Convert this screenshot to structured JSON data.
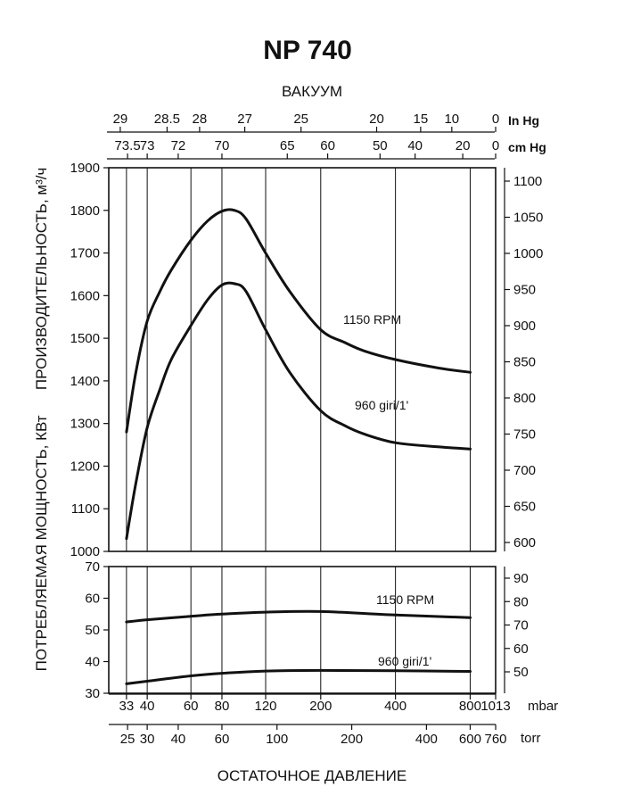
{
  "title": "NP 740",
  "colors": {
    "line": "#111111",
    "background": "#ffffff"
  },
  "chart_data": {
    "type": "line",
    "title": "NP 740",
    "x_axis_bottom": {
      "label": "ОСТАТОЧНОЕ ДАВЛЕНИЕ",
      "scale": "log",
      "mbar_ticks": [
        "33",
        "40",
        "60",
        "80",
        "120",
        "200",
        "400",
        "800",
        "1013"
      ],
      "mbar_unit": "mbar",
      "torr_ticks": [
        "25",
        "30",
        "40",
        "60",
        "100",
        "200",
        "400",
        "600",
        "760"
      ],
      "torr_unit": "torr"
    },
    "x_axis_top": {
      "label": "ВАКУУМ",
      "inhg_ticks": [
        "29",
        "28.5",
        "28",
        "27",
        "25",
        "20",
        "15",
        "10",
        "0"
      ],
      "inhg_unit": "In Hg",
      "cmhg_ticks": [
        "73.5",
        "73",
        "72",
        "70",
        "65",
        "60",
        "50",
        "40",
        "20",
        "0"
      ],
      "cmhg_unit": "cm Hg"
    },
    "y_axis_left_label": "ПОТРЕБЛЯЕМАЯ МОЩНОСТЬ, КВт      ПРОИЗВОДИТЕЛЬНОСТЬ, м³/ч",
    "upper_panel": {
      "left_ticks": [
        "1900",
        "1800",
        "1700",
        "1600",
        "1500",
        "1400",
        "1300",
        "1200",
        "1100",
        "1000"
      ],
      "right_ticks": [
        "1100",
        "1050",
        "1000",
        "950",
        "900",
        "850",
        "800",
        "750",
        "700",
        "650",
        "600"
      ],
      "ylim": [
        1000,
        1900
      ],
      "series": [
        {
          "name": "1150 RPM",
          "x_mbar": [
            33,
            36,
            40,
            45,
            50,
            60,
            70,
            80,
            90,
            100,
            120,
            150,
            200,
            250,
            300,
            400,
            600,
            800
          ],
          "y": [
            1280,
            1420,
            1540,
            1610,
            1660,
            1730,
            1775,
            1798,
            1800,
            1780,
            1700,
            1610,
            1520,
            1490,
            1470,
            1450,
            1430,
            1420
          ]
        },
        {
          "name": "960 giri/1'",
          "x_mbar": [
            33,
            36,
            40,
            45,
            50,
            60,
            70,
            80,
            90,
            100,
            120,
            150,
            200,
            250,
            300,
            400,
            600,
            800
          ],
          "y": [
            1030,
            1160,
            1290,
            1380,
            1450,
            1530,
            1590,
            1625,
            1628,
            1610,
            1520,
            1420,
            1330,
            1295,
            1275,
            1255,
            1245,
            1240
          ]
        }
      ]
    },
    "lower_panel": {
      "left_ticks": [
        "70",
        "60",
        "50",
        "40",
        "30"
      ],
      "right_ticks": [
        "90",
        "80",
        "70",
        "60",
        "50"
      ],
      "ylim": [
        30,
        70
      ],
      "series": [
        {
          "name": "1150 RPM",
          "x_mbar": [
            33,
            40,
            60,
            80,
            120,
            200,
            400,
            800
          ],
          "y": [
            52.5,
            53.2,
            54.3,
            55.0,
            55.6,
            55.8,
            54.7,
            53.9
          ]
        },
        {
          "name": "960 giri/1'",
          "x_mbar": [
            33,
            40,
            60,
            80,
            120,
            200,
            400,
            800
          ],
          "y": [
            33.0,
            33.8,
            35.5,
            36.3,
            37.0,
            37.2,
            37.1,
            36.9
          ]
        }
      ]
    }
  }
}
